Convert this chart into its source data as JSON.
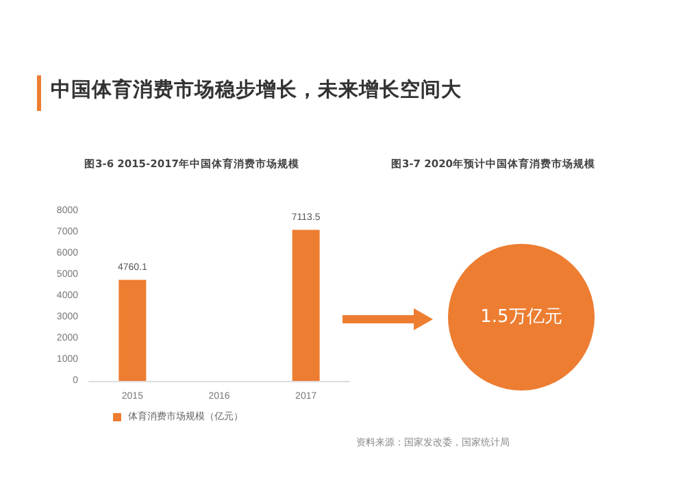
{
  "chart_data": [
    {
      "type": "bar",
      "title": "中国体育消费市场稳步增长，未来增长空间大",
      "subtitle": "图3-6  2015-2017年中国体育消费市场规模",
      "categories": [
        "2015",
        "2016",
        "2017"
      ],
      "series": [
        {
          "name": "体育消费市场规模（亿元）",
          "color": "#ed7d31",
          "values": [
            4760.1,
            null,
            7113.5
          ]
        }
      ],
      "ylim": [
        0,
        8000
      ],
      "yticks": [
        0,
        1000,
        2000,
        3000,
        4000,
        5000,
        6000,
        7000,
        8000
      ],
      "grid": false,
      "legend": "bottom",
      "data_labels": true
    },
    {
      "type": "other",
      "title": "图3-7  2020年预计中国体育消费市场规模",
      "color": "#ed7d31",
      "annotations": [
        "1.5万亿元",
        "资料来源：国家发改委，国家统计局"
      ]
    }
  ]
}
